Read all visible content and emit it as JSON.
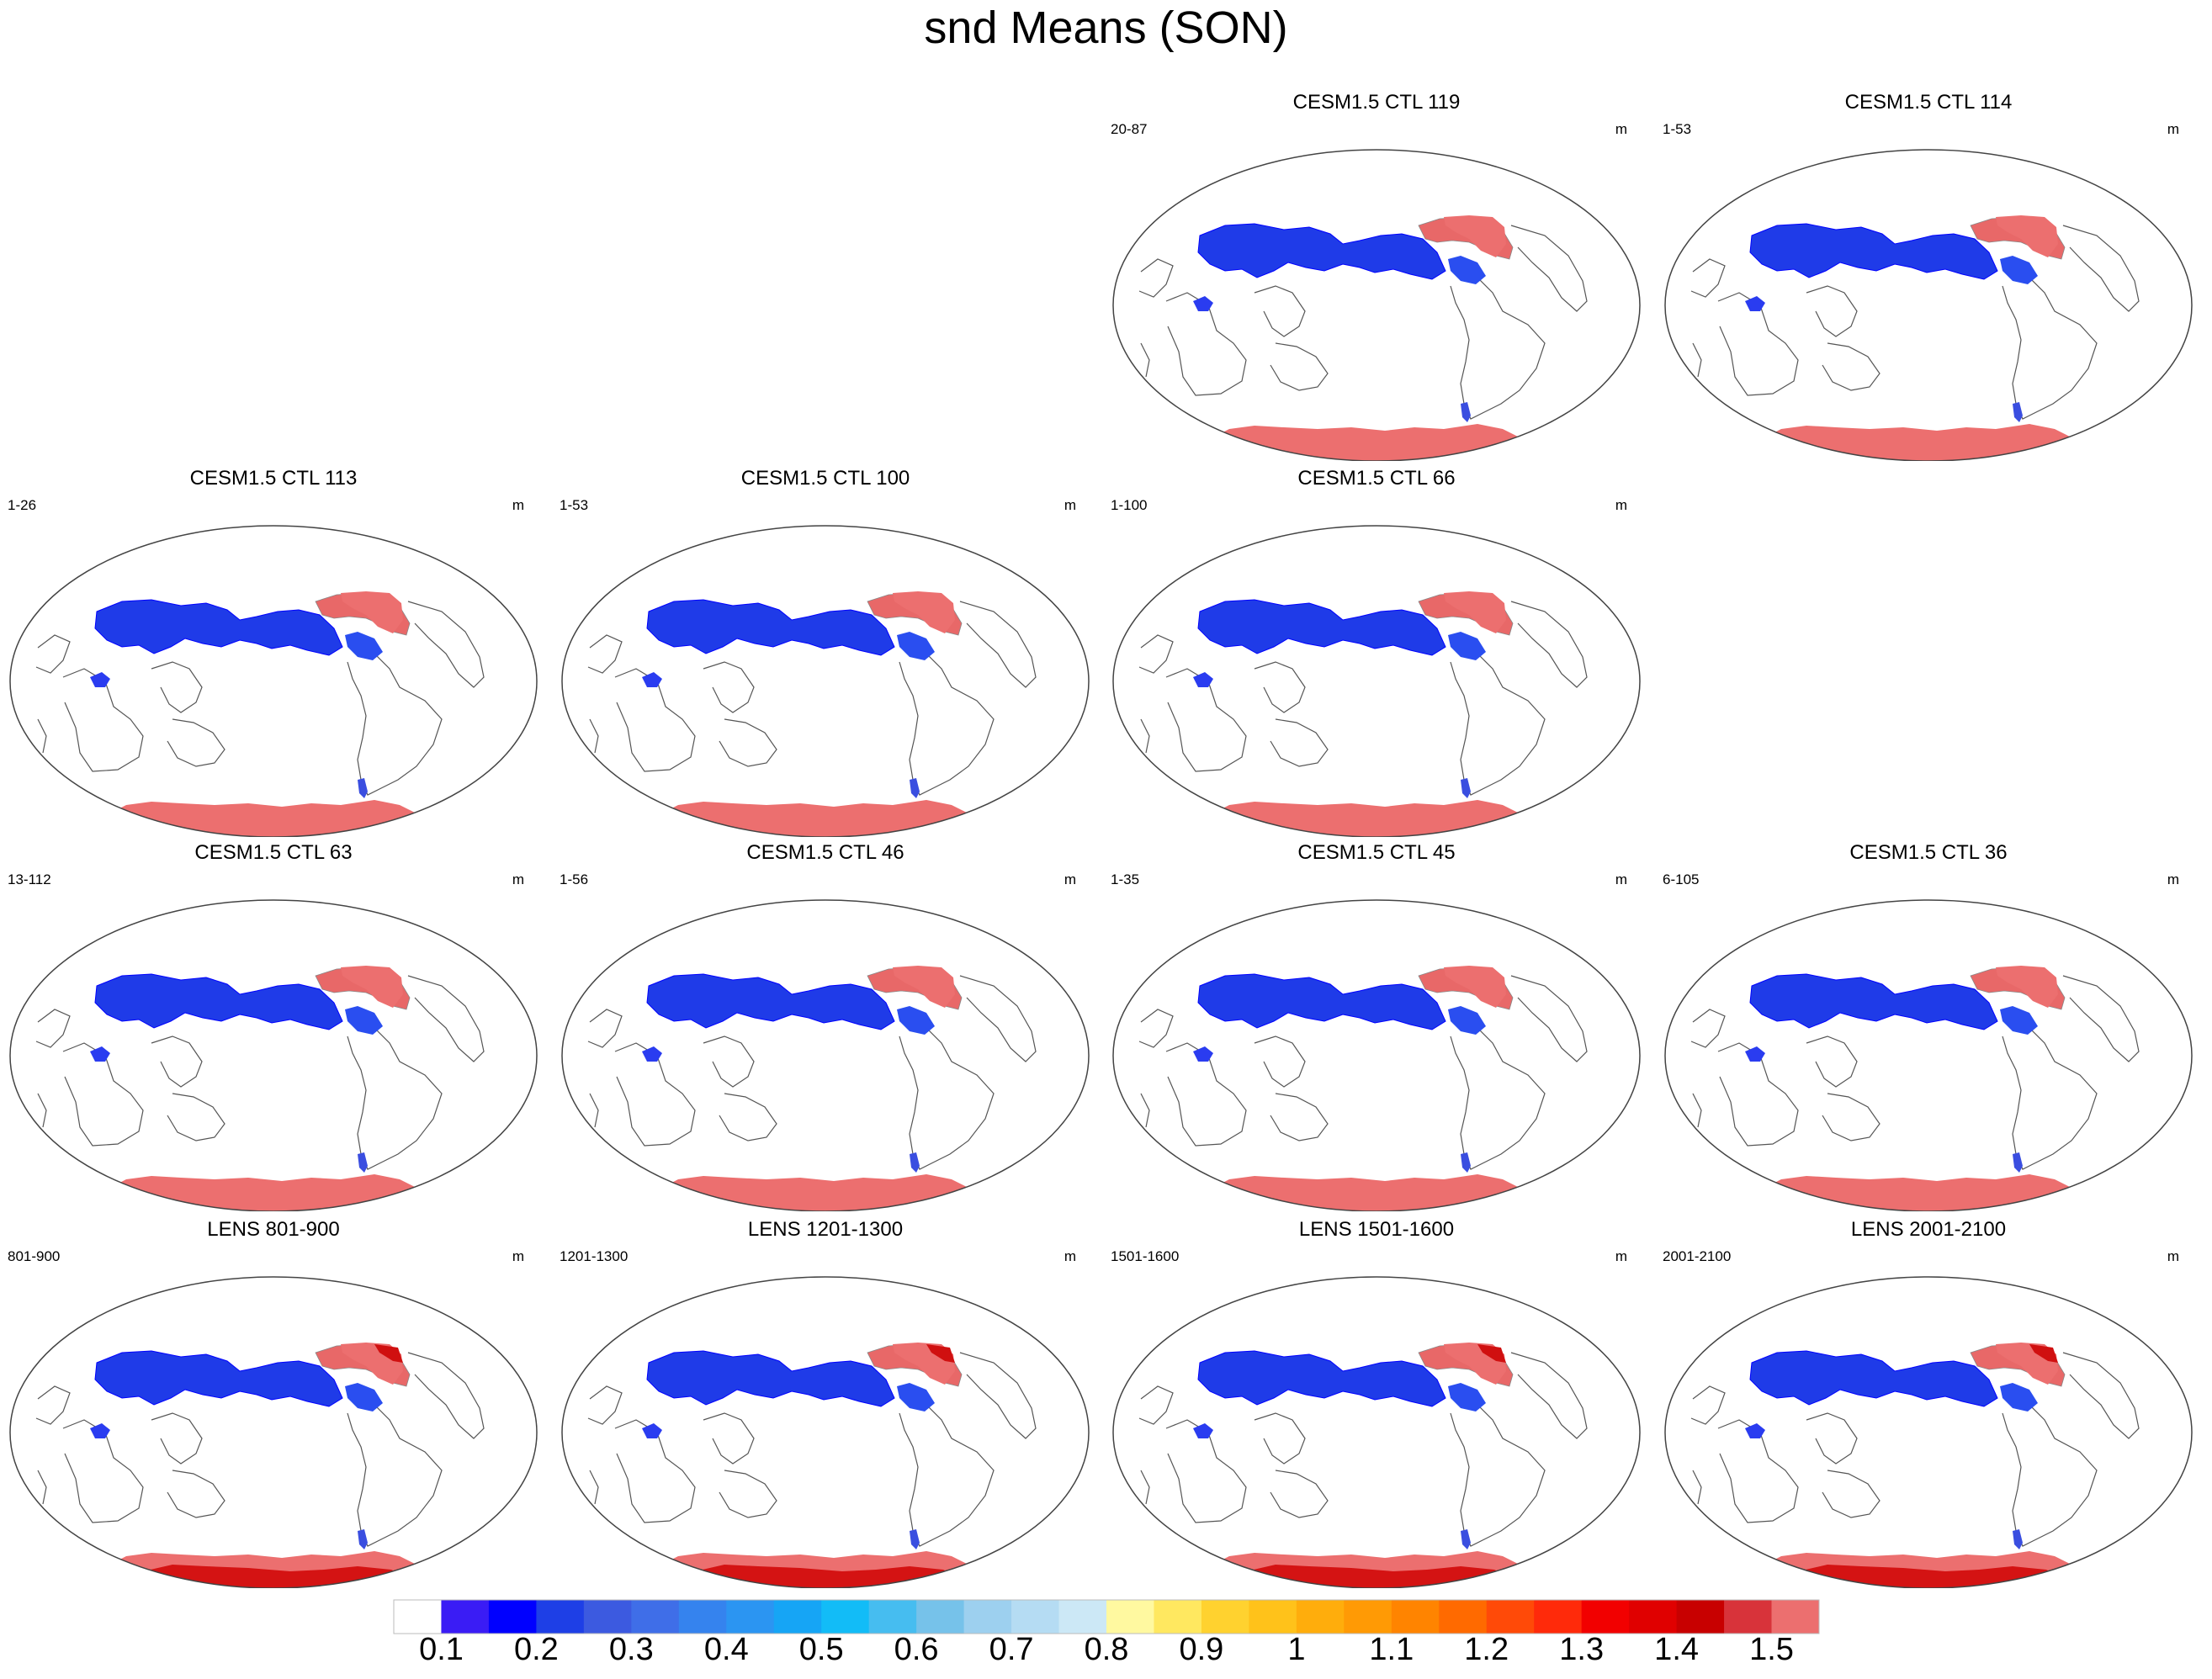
{
  "figure": {
    "title": "snd Means (SON)"
  },
  "panels": [
    {
      "title": "CESM1.5 CTL 119",
      "years": "20-87",
      "units": "m",
      "kind": "ctl"
    },
    {
      "title": "CESM1.5 CTL 114",
      "years": "1-53",
      "units": "m",
      "kind": "ctl"
    },
    {
      "title": "CESM1.5 CTL 113",
      "years": "1-26",
      "units": "m",
      "kind": "ctl"
    },
    {
      "title": "CESM1.5 CTL 100",
      "years": "1-53",
      "units": "m",
      "kind": "ctl"
    },
    {
      "title": "CESM1.5 CTL 66",
      "years": "1-100",
      "units": "m",
      "kind": "ctl"
    },
    {
      "title": "CESM1.5 CTL 63",
      "years": "13-112",
      "units": "m",
      "kind": "ctl"
    },
    {
      "title": "CESM1.5 CTL 46",
      "years": "1-56",
      "units": "m",
      "kind": "ctl"
    },
    {
      "title": "CESM1.5 CTL 45",
      "years": "1-35",
      "units": "m",
      "kind": "ctl"
    },
    {
      "title": "CESM1.5 CTL 36",
      "years": "6-105",
      "units": "m",
      "kind": "ctl"
    },
    {
      "title": "LENS 801-900",
      "years": "801-900",
      "units": "m",
      "kind": "lens"
    },
    {
      "title": "LENS 1201-1300",
      "years": "1201-1300",
      "units": "m",
      "kind": "lens"
    },
    {
      "title": "LENS 1501-1600",
      "years": "1501-1600",
      "units": "m",
      "kind": "lens"
    },
    {
      "title": "LENS 2001-2100",
      "years": "2001-2100",
      "units": "m",
      "kind": "lens"
    }
  ],
  "colorbar": {
    "labels": [
      "0.1",
      "0.2",
      "0.3",
      "0.4",
      "0.5",
      "0.6",
      "0.7",
      "0.8",
      "0.9",
      "1",
      "1.1",
      "1.2",
      "1.3",
      "1.4",
      "1.5"
    ],
    "colors": [
      "#ffffff",
      "#3a1cf5",
      "#0000ff",
      "#1e3fe6",
      "#3c5ae0",
      "#3f6ee8",
      "#3583ee",
      "#2b95f2",
      "#16a5f5",
      "#12bcf7",
      "#46bdf0",
      "#76c2ea",
      "#9dd0ef",
      "#b5dcf3",
      "#cce8f6",
      "#fff9a0",
      "#ffe860",
      "#ffd22f",
      "#ffc21a",
      "#ffad0c",
      "#ff9a05",
      "#ff8400",
      "#ff6a00",
      "#ff4a08",
      "#ff2a0a",
      "#f20000",
      "#e00000",
      "#c80000",
      "#d8333a",
      "#ec6f6f"
    ]
  },
  "chart_data": [
    {
      "type": "heatmap",
      "title": "CESM1.5 CTL 119",
      "subtitle": "20-87",
      "units": "m"
    },
    {
      "type": "heatmap",
      "title": "CESM1.5 CTL 114",
      "subtitle": "1-53",
      "units": "m"
    },
    {
      "type": "heatmap",
      "title": "CESM1.5 CTL 113",
      "subtitle": "1-26",
      "units": "m"
    },
    {
      "type": "heatmap",
      "title": "CESM1.5 CTL 100",
      "subtitle": "1-53",
      "units": "m"
    },
    {
      "type": "heatmap",
      "title": "CESM1.5 CTL 66",
      "subtitle": "1-100",
      "units": "m"
    },
    {
      "type": "heatmap",
      "title": "CESM1.5 CTL 63",
      "subtitle": "13-112",
      "units": "m"
    },
    {
      "type": "heatmap",
      "title": "CESM1.5 CTL 46",
      "subtitle": "1-56",
      "units": "m"
    },
    {
      "type": "heatmap",
      "title": "CESM1.5 CTL 45",
      "subtitle": "1-35",
      "units": "m"
    },
    {
      "type": "heatmap",
      "title": "CESM1.5 CTL 36",
      "subtitle": "6-105",
      "units": "m"
    },
    {
      "type": "heatmap",
      "title": "LENS 801-900",
      "subtitle": "801-900",
      "units": "m"
    },
    {
      "type": "heatmap",
      "title": "LENS 1201-1300",
      "subtitle": "1201-1300",
      "units": "m"
    },
    {
      "type": "heatmap",
      "title": "LENS 1501-1600",
      "subtitle": "1501-1600",
      "units": "m"
    },
    {
      "type": "heatmap",
      "title": "LENS 2001-2100",
      "subtitle": "2001-2100",
      "units": "m"
    }
  ]
}
